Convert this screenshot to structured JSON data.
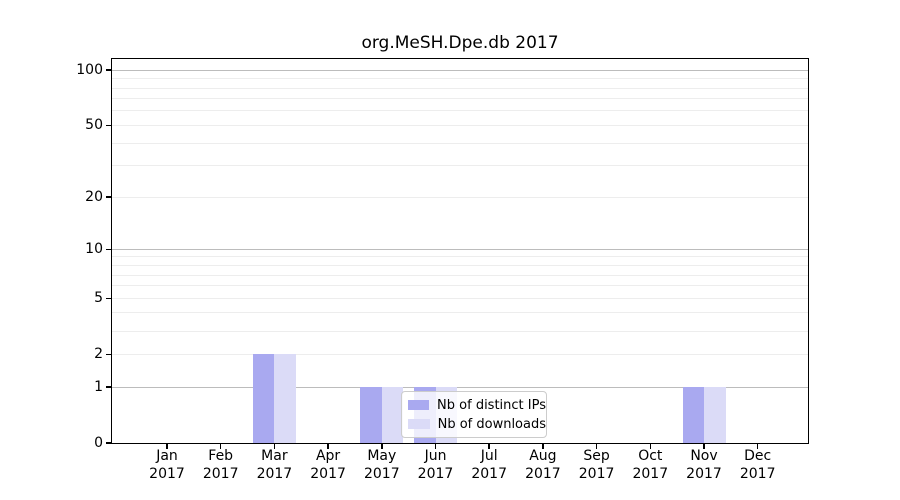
{
  "title": "org.MeSH.Dpe.db 2017",
  "chart_data": {
    "type": "bar",
    "title": "org.MeSH.Dpe.db 2017",
    "scale": "log10(1+y)",
    "grid": "horizontal",
    "ylim": [
      0,
      115
    ],
    "y_ticks": [
      0,
      1,
      2,
      5,
      10,
      20,
      50,
      100
    ],
    "categories": [
      {
        "month": "Jan",
        "year": "2017"
      },
      {
        "month": "Feb",
        "year": "2017"
      },
      {
        "month": "Mar",
        "year": "2017"
      },
      {
        "month": "Apr",
        "year": "2017"
      },
      {
        "month": "May",
        "year": "2017"
      },
      {
        "month": "Jun",
        "year": "2017"
      },
      {
        "month": "Jul",
        "year": "2017"
      },
      {
        "month": "Aug",
        "year": "2017"
      },
      {
        "month": "Sep",
        "year": "2017"
      },
      {
        "month": "Oct",
        "year": "2017"
      },
      {
        "month": "Nov",
        "year": "2017"
      },
      {
        "month": "Dec",
        "year": "2017"
      }
    ],
    "series": [
      {
        "name": "Nb of distinct IPs",
        "key": "distinct-ips",
        "color": "#a9a9f0",
        "values": [
          0,
          0,
          2,
          0,
          1,
          1,
          0,
          0,
          0,
          0,
          1,
          0
        ]
      },
      {
        "name": "Nb of downloads",
        "key": "downloads",
        "color": "#dbdbf7",
        "values": [
          0,
          0,
          2,
          0,
          1,
          1,
          0,
          0,
          0,
          0,
          1,
          0
        ]
      }
    ],
    "legend": {
      "position": "inside-bottom-center"
    }
  },
  "colors": {
    "grid_major": "#bcbcbc",
    "grid_minor": "#ededed",
    "axis": "#000000",
    "legend_border": "#cccccc",
    "background": "#ffffff"
  }
}
